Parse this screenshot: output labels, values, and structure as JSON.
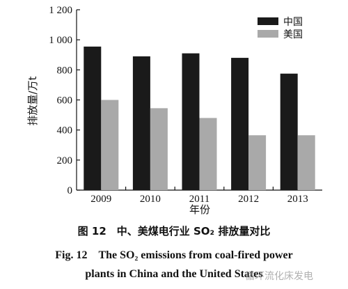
{
  "chart_data": {
    "type": "bar",
    "categories": [
      "2009",
      "2010",
      "2011",
      "2012",
      "2013"
    ],
    "series": [
      {
        "name": "中国",
        "values": [
          955,
          890,
          910,
          880,
          775
        ],
        "color": "#1a1a1a"
      },
      {
        "name": "美国",
        "values": [
          600,
          545,
          480,
          365,
          365
        ],
        "color": "#a9a9a9"
      }
    ],
    "xlabel": "年份",
    "ylabel": "排放量/万t",
    "ylim": [
      0,
      1200
    ],
    "yticks": [
      "0",
      "200",
      "400",
      "600",
      "800",
      "1 000",
      "1 200"
    ],
    "grid": false,
    "legend_position": "top-right"
  },
  "caption": {
    "zh": "图 12　中、美煤电行业 SO₂ 排放量对比",
    "en_line1": "Fig. 12　The SO₂ emissions from coal-fired power",
    "en_line2": "plants in China and the United States"
  },
  "watermark": "循环流化床发电"
}
